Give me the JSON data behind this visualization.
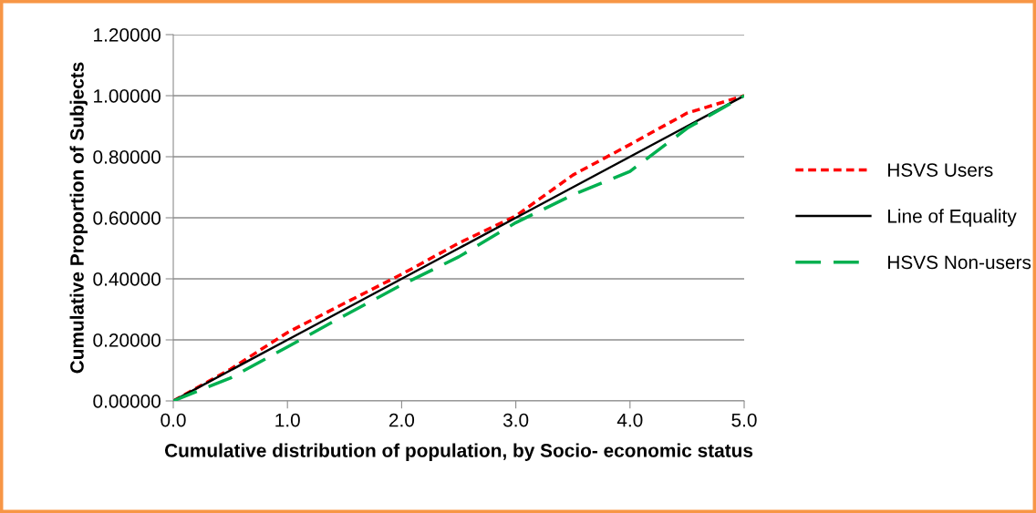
{
  "chart_data": {
    "type": "line",
    "xlabel": "Cumulative distribution of population, by Socio- economic status",
    "ylabel": "Cumulative Proportion of Subjects",
    "x": [
      0,
      0.5,
      1,
      1.5,
      2,
      2.5,
      3,
      3.5,
      4,
      4.5,
      5
    ],
    "xlim": [
      0,
      5
    ],
    "xticks": [
      {
        "value": 0,
        "label": "0.0"
      },
      {
        "value": 1,
        "label": "1.0"
      },
      {
        "value": 2,
        "label": "2.0"
      },
      {
        "value": 3,
        "label": "3.0"
      },
      {
        "value": 4,
        "label": "4.0"
      },
      {
        "value": 5,
        "label": "5.0"
      }
    ],
    "ylim": [
      0,
      1.2
    ],
    "yticks": [
      {
        "value": 0,
        "label": "0.00000"
      },
      {
        "value": 0.2,
        "label": "0.20000"
      },
      {
        "value": 0.4,
        "label": "0.40000"
      },
      {
        "value": 0.6,
        "label": "0.60000"
      },
      {
        "value": 0.8,
        "label": "0.80000"
      },
      {
        "value": 1.0,
        "label": "1.00000"
      },
      {
        "value": 1.2,
        "label": "1.20000"
      }
    ],
    "grid": "y",
    "legend": "right",
    "marker": "none",
    "series": [
      {
        "name": "HSVS Users",
        "color": "#ff0000",
        "line_style": "dotted",
        "values": [
          0,
          0.104,
          0.224,
          0.32,
          0.415,
          0.517,
          0.606,
          0.74,
          0.84,
          0.943,
          1.0
        ]
      },
      {
        "name": "Line of Equality",
        "color": "#000000",
        "line_style": "solid",
        "values": [
          0,
          0.1,
          0.2,
          0.3,
          0.4,
          0.5,
          0.6,
          0.7,
          0.8,
          0.9,
          1.0
        ]
      },
      {
        "name": "HSVS Non-users",
        "color": "#00b050",
        "line_style": "dashed",
        "values": [
          0,
          0.075,
          0.177,
          0.28,
          0.38,
          0.472,
          0.584,
          0.675,
          0.752,
          0.893,
          1.0
        ]
      }
    ]
  }
}
